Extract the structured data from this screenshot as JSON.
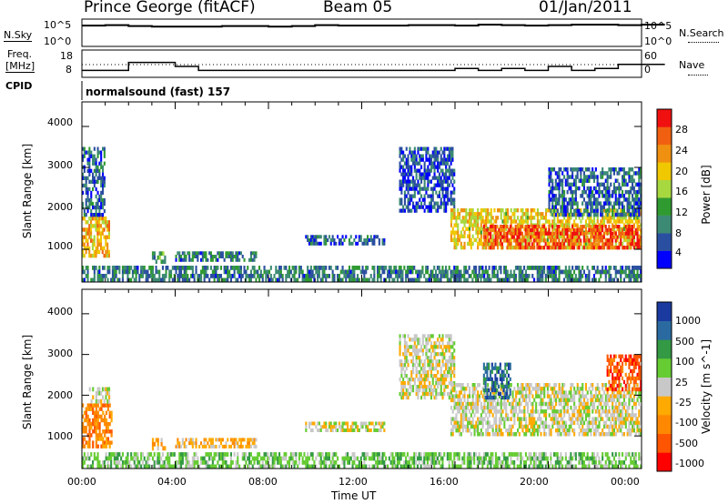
{
  "header": {
    "station": "Prince George (fitACF)",
    "beam": "Beam 05",
    "date": "01/Jan/2011"
  },
  "strip_labels": {
    "nsky": "N.Sky",
    "nsearch": "N.Search",
    "freq": "Freq.",
    "freq_unit": "[MHz]",
    "nave": "Nave",
    "cpid": "CPID",
    "cpid_value": "normalsound (fast) 157",
    "noise_ticks_left": [
      "10^5",
      "10^0"
    ],
    "noise_ticks_right": [
      "10^5",
      "10^0"
    ],
    "freq_ticks": [
      "18",
      "8"
    ],
    "nave_ticks": [
      "60",
      "0"
    ]
  },
  "colors": {
    "power_scale": [
      "#0000ff",
      "#2b4fa0",
      "#3c8a73",
      "#2f9a30",
      "#a8d840",
      "#f0c800",
      "#f09010",
      "#f06010",
      "#f01010"
    ],
    "velocity_scale": [
      "#ff0000",
      "#ff5500",
      "#ff8800",
      "#ffaa00",
      "#c8c8c8",
      "#66cc33",
      "#339944",
      "#2a6aa0",
      "#1a3aa0"
    ],
    "ground_scatter": "#c8c8c8"
  },
  "chart_data": [
    {
      "type": "heatmap",
      "name": "power",
      "ylabel": "Slant Range [km]",
      "xlabel": "Time UT",
      "x_ticks": [
        "00:00",
        "04:00",
        "08:00",
        "12:00",
        "16:00",
        "20:00",
        "00:00"
      ],
      "xlim_hours": [
        0,
        24
      ],
      "y_ticks": [
        1000,
        2000,
        3000,
        4000
      ],
      "ylim_km": [
        200,
        4600
      ],
      "colorbar_label": "Power [dB]",
      "colorbar_ticks": [
        "28",
        "24",
        "20",
        "16",
        "12",
        "8",
        "4"
      ],
      "colorbar_range": [
        0,
        30
      ],
      "regions": [
        {
          "t0": 0.0,
          "t1": 1.2,
          "r0": 800,
          "r1": 1800,
          "level": 20
        },
        {
          "t0": 0.0,
          "t1": 1.0,
          "r0": 1800,
          "r1": 3500,
          "level": 6
        },
        {
          "t0": 3.0,
          "t1": 3.6,
          "r0": 650,
          "r1": 950,
          "level": 10
        },
        {
          "t0": 4.0,
          "t1": 7.5,
          "r0": 700,
          "r1": 950,
          "level": 8
        },
        {
          "t0": 9.5,
          "t1": 13.0,
          "r0": 1100,
          "r1": 1350,
          "level": 6
        },
        {
          "t0": 13.6,
          "t1": 16.0,
          "r0": 1900,
          "r1": 3500,
          "level": 5
        },
        {
          "t0": 15.8,
          "t1": 24.0,
          "r0": 1000,
          "r1": 2000,
          "level": 18
        },
        {
          "t0": 17.2,
          "t1": 24.0,
          "r0": 1000,
          "r1": 1600,
          "level": 26
        },
        {
          "t0": 20.0,
          "t1": 24.0,
          "r0": 1800,
          "r1": 3000,
          "level": 6
        },
        {
          "t0": 0.0,
          "t1": 24.0,
          "r0": 200,
          "r1": 600,
          "level": 8
        }
      ]
    },
    {
      "type": "heatmap",
      "name": "velocity",
      "ylabel": "Slant Range [km]",
      "xlabel": "Time UT",
      "x_ticks": [
        "00:00",
        "04:00",
        "08:00",
        "12:00",
        "16:00",
        "20:00",
        "00:00"
      ],
      "xlim_hours": [
        0,
        24
      ],
      "y_ticks": [
        1000,
        2000,
        3000,
        4000
      ],
      "ylim_km": [
        200,
        4600
      ],
      "colorbar_label": "Velocity [m s^-1]",
      "colorbar_ticks": [
        "1000",
        "500",
        "100",
        "25",
        "-25",
        "-100",
        "-500",
        "-1000"
      ],
      "regions": [
        {
          "t0": 0.0,
          "t1": 1.3,
          "r0": 700,
          "r1": 1800,
          "level": 2
        },
        {
          "t0": 0.3,
          "t1": 1.2,
          "r0": 1800,
          "r1": 2200,
          "level": 4
        },
        {
          "t0": 3.0,
          "t1": 3.6,
          "r0": 650,
          "r1": 950,
          "level": 3
        },
        {
          "t0": 4.0,
          "t1": 7.5,
          "r0": 700,
          "r1": 950,
          "level": 3
        },
        {
          "t0": 9.5,
          "t1": 13.0,
          "r0": 1100,
          "r1": 1350,
          "level": 4
        },
        {
          "t0": 13.6,
          "t1": 16.0,
          "r0": 1900,
          "r1": 3500,
          "level": 4
        },
        {
          "t0": 15.8,
          "t1": 24.0,
          "r0": 1000,
          "r1": 2300,
          "level": 4
        },
        {
          "t0": 17.2,
          "t1": 18.4,
          "r0": 1900,
          "r1": 2800,
          "level": 7
        },
        {
          "t0": 22.5,
          "t1": 24.0,
          "r0": 2100,
          "r1": 3000,
          "level": 1
        },
        {
          "t0": 0.0,
          "t1": 24.0,
          "r0": 200,
          "r1": 600,
          "level": 5
        }
      ]
    }
  ],
  "strip_series": {
    "nsky_level": [
      4.2,
      4.3,
      4.1,
      4.0,
      4.0,
      4.0,
      4.1,
      4.1,
      4.0,
      4.1,
      4.3,
      4.2,
      4.2,
      4.2,
      4.3,
      4.3,
      4.2,
      4.4,
      4.3,
      4.2,
      4.3,
      4.4,
      4.4,
      4.3,
      4.4
    ],
    "freq_mhz": [
      11,
      11,
      15,
      15,
      13,
      11,
      11,
      11,
      11,
      11,
      11,
      11,
      11,
      11,
      11,
      11,
      12,
      11,
      12,
      11,
      13,
      11,
      12,
      14,
      14
    ]
  }
}
